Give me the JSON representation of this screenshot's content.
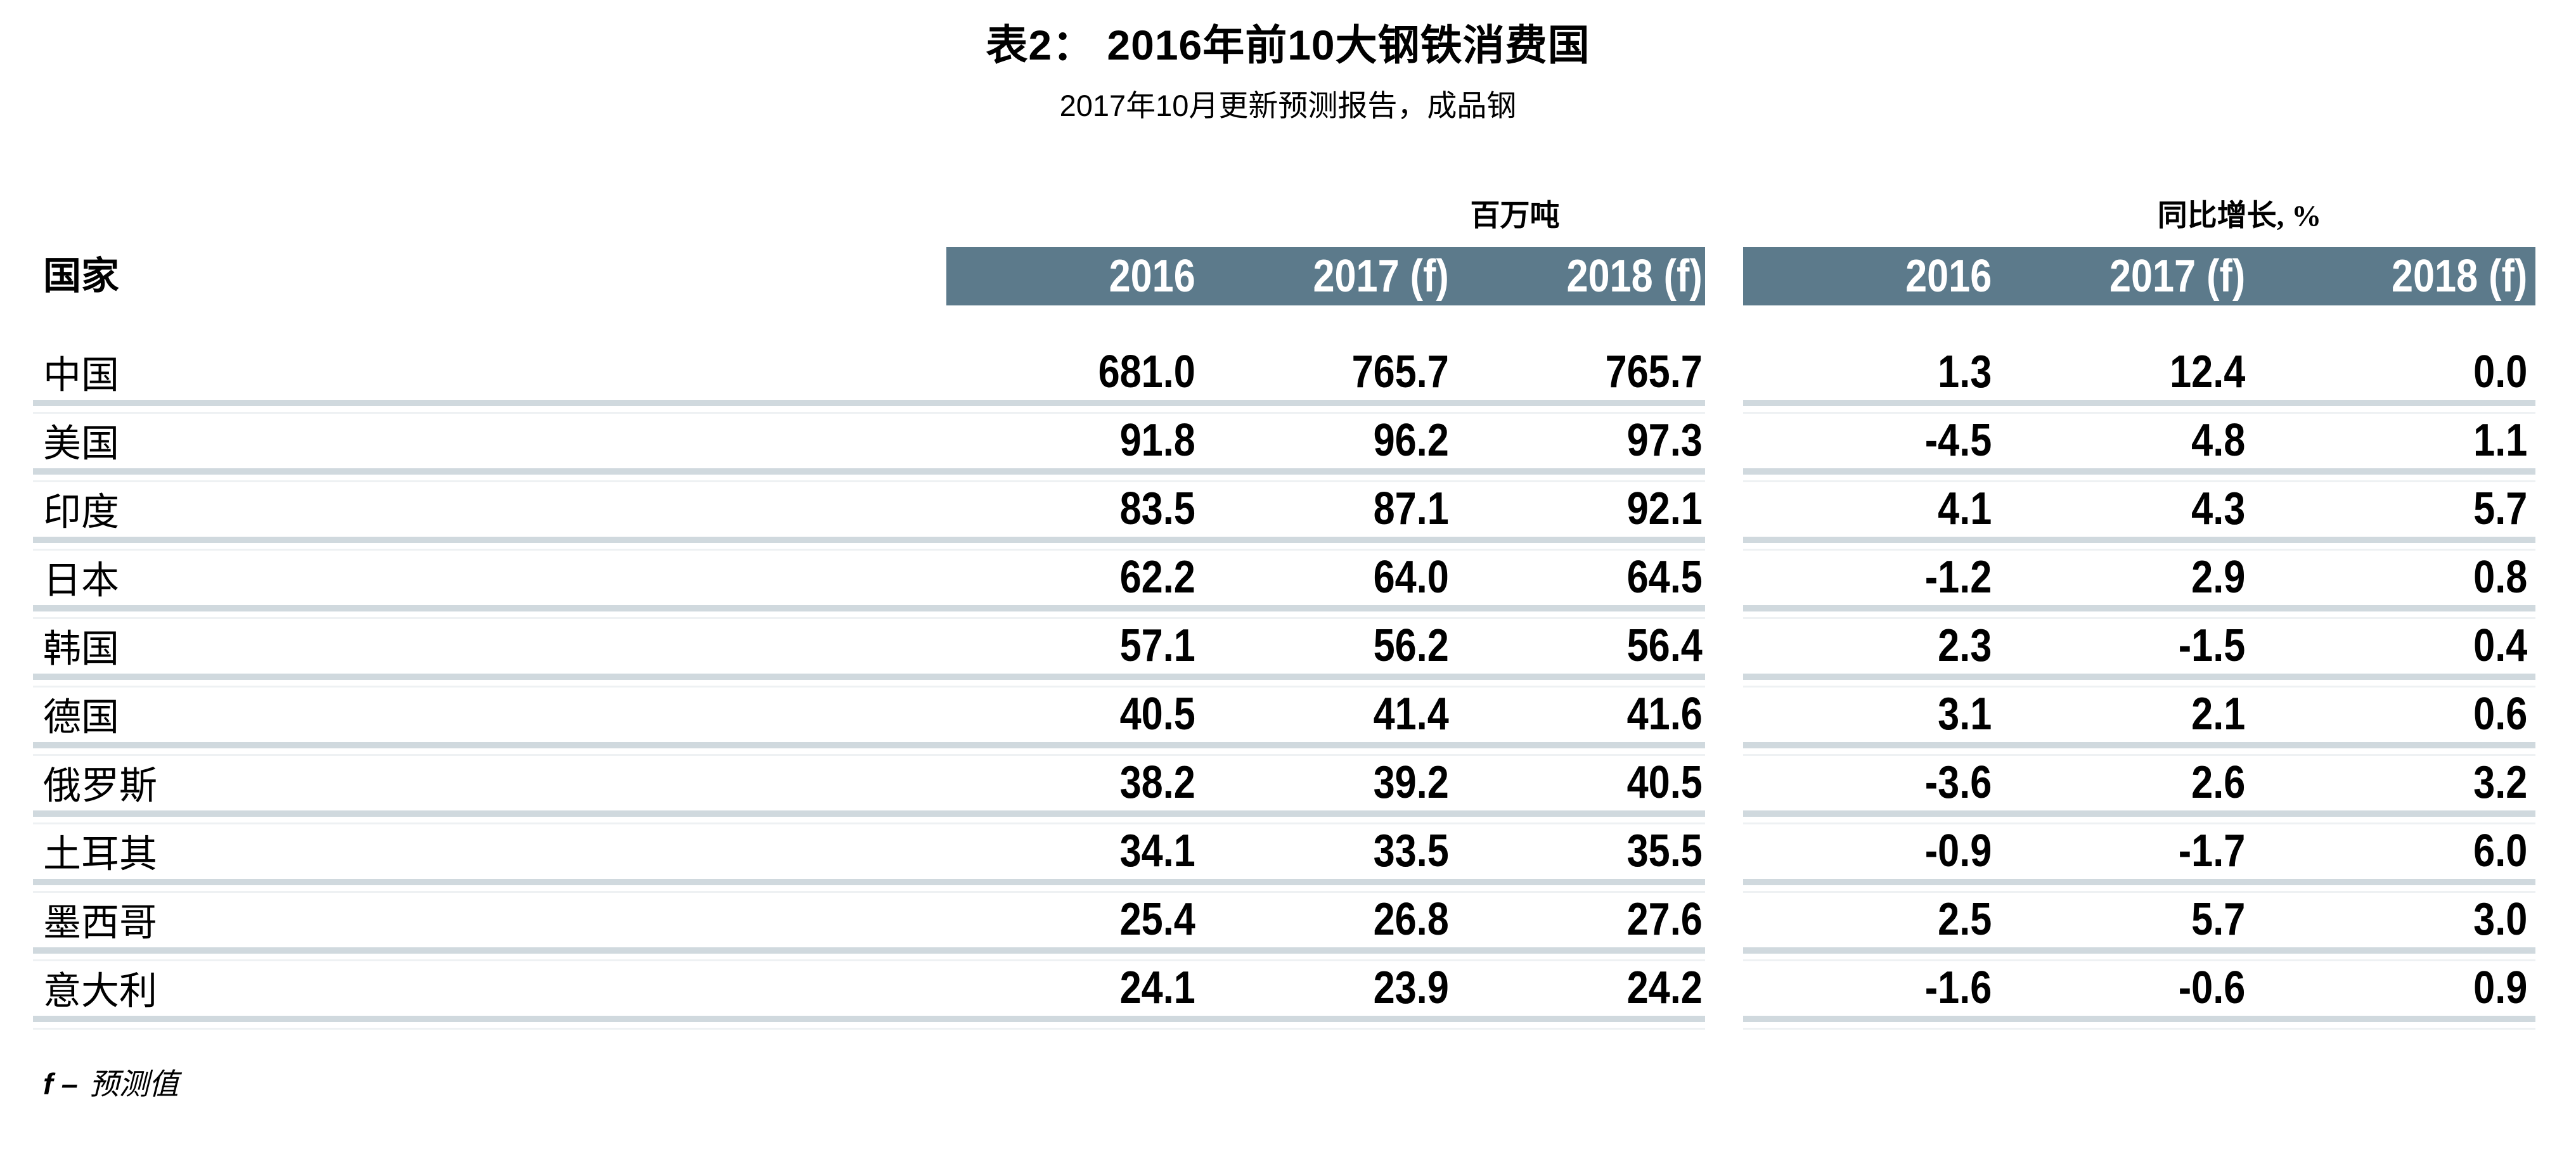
{
  "page": {
    "title": "表2： 2016年前10大钢铁消费国",
    "subtitle": "2017年10月更新预测报告，成品钢"
  },
  "table": {
    "country_header": "国家",
    "groups": [
      {
        "label": "百万吨",
        "columns": [
          "2016",
          "2017 (f)",
          "2018 (f)"
        ]
      },
      {
        "label": "同比增长, %",
        "columns": [
          "2016",
          "2017 (f)",
          "2018 (f)"
        ]
      }
    ],
    "rows": [
      {
        "country": "中国",
        "tonnes": [
          "681.0",
          "765.7",
          "765.7"
        ],
        "growth": [
          "1.3",
          "12.4",
          "0.0"
        ]
      },
      {
        "country": "美国",
        "tonnes": [
          "91.8",
          "96.2",
          "97.3"
        ],
        "growth": [
          "-4.5",
          "4.8",
          "1.1"
        ]
      },
      {
        "country": "印度",
        "tonnes": [
          "83.5",
          "87.1",
          "92.1"
        ],
        "growth": [
          "4.1",
          "4.3",
          "5.7"
        ]
      },
      {
        "country": "日本",
        "tonnes": [
          "62.2",
          "64.0",
          "64.5"
        ],
        "growth": [
          "-1.2",
          "2.9",
          "0.8"
        ]
      },
      {
        "country": "韩国",
        "tonnes": [
          "57.1",
          "56.2",
          "56.4"
        ],
        "growth": [
          "2.3",
          "-1.5",
          "0.4"
        ]
      },
      {
        "country": "德国",
        "tonnes": [
          "40.5",
          "41.4",
          "41.6"
        ],
        "growth": [
          "3.1",
          "2.1",
          "0.6"
        ]
      },
      {
        "country": "俄罗斯",
        "tonnes": [
          "38.2",
          "39.2",
          "40.5"
        ],
        "growth": [
          "-3.6",
          "2.6",
          "3.2"
        ]
      },
      {
        "country": "土耳其",
        "tonnes": [
          "34.1",
          "33.5",
          "35.5"
        ],
        "growth": [
          "-0.9",
          "-1.7",
          "6.0"
        ]
      },
      {
        "country": "墨西哥",
        "tonnes": [
          "25.4",
          "26.8",
          "27.6"
        ],
        "growth": [
          "2.5",
          "5.7",
          "3.0"
        ]
      },
      {
        "country": "意大利",
        "tonnes": [
          "24.1",
          "23.9",
          "24.2"
        ],
        "growth": [
          "-1.6",
          "-0.6",
          "0.9"
        ]
      }
    ],
    "footnote": {
      "prefix": "f –",
      "label": "预测值"
    }
  },
  "colors": {
    "header_band": "#5c7a8b",
    "separator": "#d0d9de",
    "separator_light": "#eef1f3",
    "header_text": "#ffffff"
  },
  "chart_data": {
    "type": "table",
    "title": "表2： 2016年前10大钢铁消费国",
    "subtitle": "2017年10月更新预测报告，成品钢",
    "column_groups": [
      {
        "label": "百万吨",
        "columns": [
          "2016",
          "2017 (f)",
          "2018 (f)"
        ]
      },
      {
        "label": "同比增长, %",
        "columns": [
          "2016",
          "2017 (f)",
          "2018 (f)"
        ]
      }
    ],
    "row_header": "国家",
    "rows": [
      {
        "country": "中国",
        "million_tonnes": [
          681.0,
          765.7,
          765.7
        ],
        "yoy_growth_pct": [
          1.3,
          12.4,
          0.0
        ]
      },
      {
        "country": "美国",
        "million_tonnes": [
          91.8,
          96.2,
          97.3
        ],
        "yoy_growth_pct": [
          -4.5,
          4.8,
          1.1
        ]
      },
      {
        "country": "印度",
        "million_tonnes": [
          83.5,
          87.1,
          92.1
        ],
        "yoy_growth_pct": [
          4.1,
          4.3,
          5.7
        ]
      },
      {
        "country": "日本",
        "million_tonnes": [
          62.2,
          64.0,
          64.5
        ],
        "yoy_growth_pct": [
          -1.2,
          2.9,
          0.8
        ]
      },
      {
        "country": "韩国",
        "million_tonnes": [
          57.1,
          56.2,
          56.4
        ],
        "yoy_growth_pct": [
          2.3,
          -1.5,
          0.4
        ]
      },
      {
        "country": "德国",
        "million_tonnes": [
          40.5,
          41.4,
          41.6
        ],
        "yoy_growth_pct": [
          3.1,
          2.1,
          0.6
        ]
      },
      {
        "country": "俄罗斯",
        "million_tonnes": [
          38.2,
          39.2,
          40.5
        ],
        "yoy_growth_pct": [
          -3.6,
          2.6,
          3.2
        ]
      },
      {
        "country": "土耳其",
        "million_tonnes": [
          34.1,
          33.5,
          35.5
        ],
        "yoy_growth_pct": [
          -0.9,
          -1.7,
          6.0
        ]
      },
      {
        "country": "墨西哥",
        "million_tonnes": [
          25.4,
          26.8,
          27.6
        ],
        "yoy_growth_pct": [
          2.5,
          5.7,
          3.0
        ]
      },
      {
        "country": "意大利",
        "million_tonnes": [
          24.1,
          23.9,
          24.2
        ],
        "yoy_growth_pct": [
          -1.6,
          -0.6,
          0.9
        ]
      }
    ],
    "footnote": "f – 预测值"
  }
}
